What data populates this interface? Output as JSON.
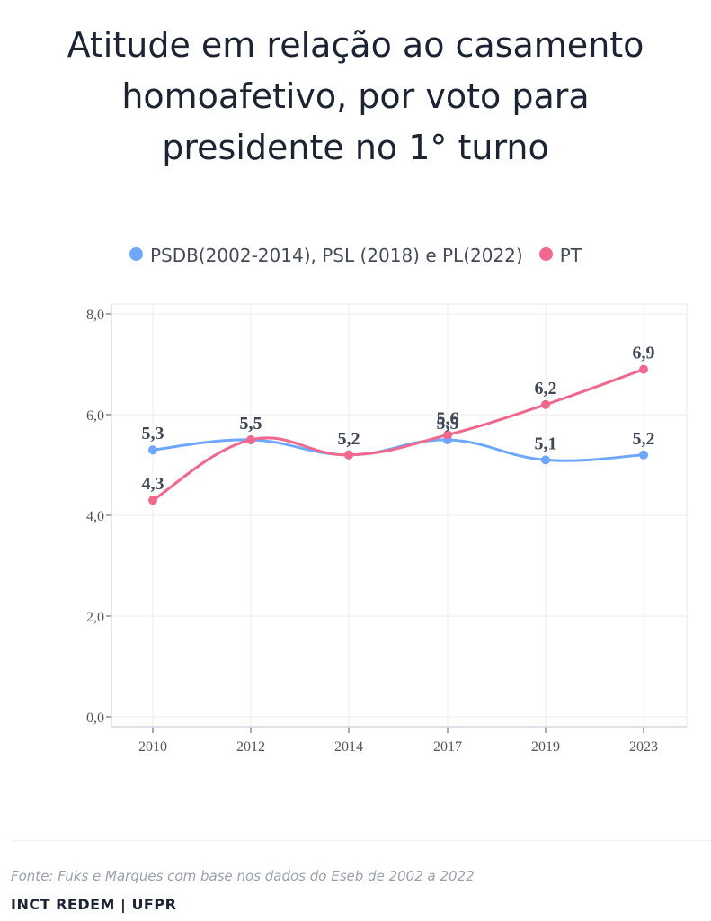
{
  "title_lines": [
    "Atitude em relação ao casamento",
    "homoafetivo, por voto para",
    "presidente no 1° turno"
  ],
  "legend": [
    {
      "label": "PSDB(2002-2014), PSL (2018) e PL(2022)",
      "color": "#6ea8fe"
    },
    {
      "label": "PT",
      "color": "#f2688d"
    }
  ],
  "source": "Fonte: Fuks e Marques com base nos dados do Eseb de 2002 a 2022",
  "credit": "INCT REDEM | UFPR",
  "chart_data": {
    "type": "line",
    "title": "Atitude em relação ao casamento homoafetivo, por voto para presidente no 1° turno",
    "xlabel": "",
    "ylabel": "",
    "categories": [
      "2010",
      "2012",
      "2014",
      "2017",
      "2019",
      "2023"
    ],
    "ylim": [
      0,
      8
    ],
    "yticks": [
      0,
      2,
      4,
      6,
      8
    ],
    "ytick_labels": [
      "0,0",
      "2,0",
      "4,0",
      "6,0",
      "8,0"
    ],
    "grid": true,
    "legend_position": "top-center",
    "series": [
      {
        "name": "PSDB(2002-2014), PSL (2018) e PL(2022)",
        "color": "#6ea8fe",
        "values": [
          5.3,
          5.5,
          5.2,
          5.5,
          5.1,
          5.2
        ],
        "labels": [
          "5,3",
          "5,5",
          "5,2",
          "5,5",
          "5,1",
          "5,2"
        ]
      },
      {
        "name": "PT",
        "color": "#f2688d",
        "values": [
          4.3,
          5.5,
          5.2,
          5.6,
          6.2,
          6.9
        ],
        "labels": [
          "4,3",
          "5,5",
          "5,2",
          "5,6",
          "6,2",
          "6,9"
        ]
      }
    ]
  }
}
